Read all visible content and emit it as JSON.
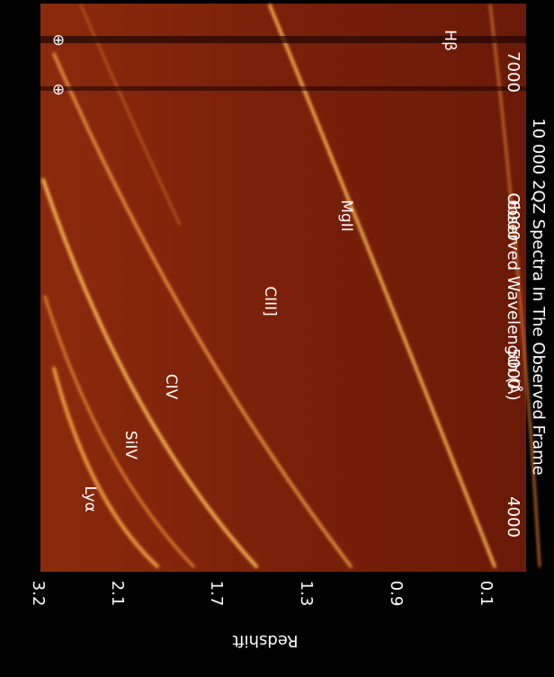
{
  "figure": {
    "title": "10 000 2QZ Spectra In The Observed Frame",
    "x_axis": {
      "label": "Observed Wavelength (Å)",
      "ticks": [
        "4000",
        "5000",
        "6000",
        "7000"
      ]
    },
    "y_axis": {
      "label": "Redshift",
      "ticks": [
        "3.2",
        "2.1",
        "1.7",
        "1.3",
        "0.9",
        "0.1"
      ]
    },
    "lines": [
      "Lyα",
      "SiIV",
      "CIV",
      "CIII]",
      "MgII",
      "Hβ"
    ],
    "symbols": [
      "⊕",
      "⊕"
    ]
  }
}
